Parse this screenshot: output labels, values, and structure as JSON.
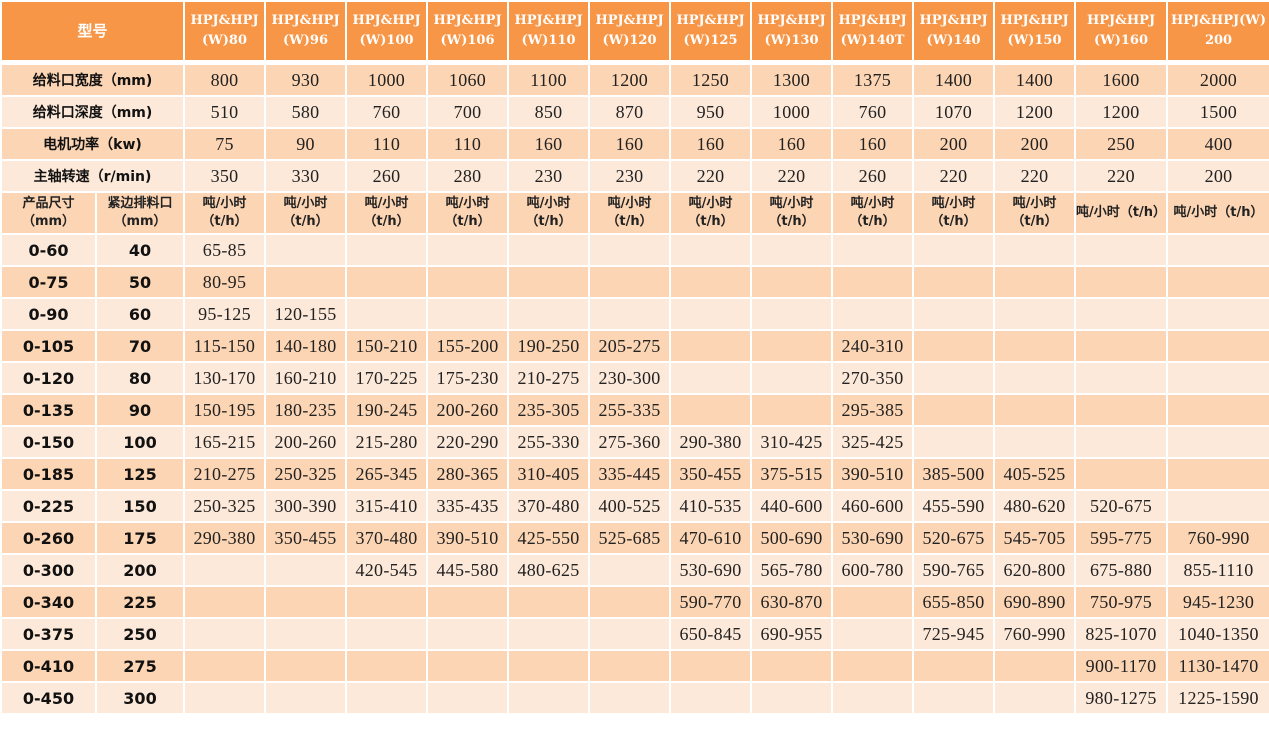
{
  "colors": {
    "header": "#F79646",
    "row_dark": "#FCD5B4",
    "row_light": "#FDE9D9"
  },
  "header": {
    "model_label": "型号",
    "models": [
      "HPJ&HPJ(W)80",
      "HPJ&HPJ(W)96",
      "HPJ&HPJ(W)100",
      "HPJ&HPJ(W)106",
      "HPJ&HPJ(W)110",
      "HPJ&HPJ(W)120",
      "HPJ&HPJ(W)125",
      "HPJ&HPJ(W)130",
      "HPJ&HPJ(W)140T",
      "HPJ&HPJ(W)140",
      "HPJ&HPJ(W)150",
      "HPJ&HPJ(W)160",
      "HPJ&HPJ(W)200"
    ]
  },
  "specs": [
    {
      "label": "给料口宽度（mm)",
      "values": [
        "800",
        "930",
        "1000",
        "1060",
        "1100",
        "1200",
        "1250",
        "1300",
        "1375",
        "1400",
        "1400",
        "1600",
        "2000"
      ]
    },
    {
      "label": "给料口深度（mm)",
      "values": [
        "510",
        "580",
        "760",
        "700",
        "850",
        "870",
        "950",
        "1000",
        "760",
        "1070",
        "1200",
        "1200",
        "1500"
      ]
    },
    {
      "label": "电机功率（kw)",
      "values": [
        "75",
        "90",
        "110",
        "110",
        "160",
        "160",
        "160",
        "160",
        "160",
        "200",
        "200",
        "250",
        "400"
      ]
    },
    {
      "label": "主轴转速（r/min)",
      "values": [
        "350",
        "330",
        "260",
        "280",
        "230",
        "230",
        "220",
        "220",
        "260",
        "220",
        "220",
        "220",
        "200"
      ]
    }
  ],
  "units": {
    "size": "产品尺寸（mm）",
    "gap": "紧边排料口（mm）",
    "capacity": "吨/小时（t/h）"
  },
  "rows": [
    {
      "size": "0-60",
      "gap": "40",
      "values": [
        "65-85",
        "",
        "",
        "",
        "",
        "",
        "",
        "",
        "",
        "",
        "",
        "",
        ""
      ]
    },
    {
      "size": "0-75",
      "gap": "50",
      "values": [
        "80-95",
        "",
        "",
        "",
        "",
        "",
        "",
        "",
        "",
        "",
        "",
        "",
        ""
      ]
    },
    {
      "size": "0-90",
      "gap": "60",
      "values": [
        "95-125",
        "120-155",
        "",
        "",
        "",
        "",
        "",
        "",
        "",
        "",
        "",
        "",
        ""
      ]
    },
    {
      "size": "0-105",
      "gap": "70",
      "values": [
        "115-150",
        "140-180",
        "150-210",
        "155-200",
        "190-250",
        "205-275",
        "",
        "",
        "240-310",
        "",
        "",
        "",
        ""
      ]
    },
    {
      "size": "0-120",
      "gap": "80",
      "values": [
        "130-170",
        "160-210",
        "170-225",
        "175-230",
        "210-275",
        "230-300",
        "",
        "",
        "270-350",
        "",
        "",
        "",
        ""
      ]
    },
    {
      "size": "0-135",
      "gap": "90",
      "values": [
        "150-195",
        "180-235",
        "190-245",
        "200-260",
        "235-305",
        "255-335",
        "",
        "",
        "295-385",
        "",
        "",
        "",
        ""
      ]
    },
    {
      "size": "0-150",
      "gap": "100",
      "values": [
        "165-215",
        "200-260",
        "215-280",
        "220-290",
        "255-330",
        "275-360",
        "290-380",
        "310-425",
        "325-425",
        "",
        "",
        "",
        ""
      ]
    },
    {
      "size": "0-185",
      "gap": "125",
      "values": [
        "210-275",
        "250-325",
        "265-345",
        "280-365",
        "310-405",
        "335-445",
        "350-455",
        "375-515",
        "390-510",
        "385-500",
        "405-525",
        "",
        ""
      ]
    },
    {
      "size": "0-225",
      "gap": "150",
      "values": [
        "250-325",
        "300-390",
        "315-410",
        "335-435",
        "370-480",
        "400-525",
        "410-535",
        "440-600",
        "460-600",
        "455-590",
        "480-620",
        "520-675",
        ""
      ]
    },
    {
      "size": "0-260",
      "gap": "175",
      "values": [
        "290-380",
        "350-455",
        "370-480",
        "390-510",
        "425-550",
        "525-685",
        "470-610",
        "500-690",
        "530-690",
        "520-675",
        "545-705",
        "595-775",
        "760-990"
      ]
    },
    {
      "size": "0-300",
      "gap": "200",
      "values": [
        "",
        "",
        "420-545",
        "445-580",
        "480-625",
        "",
        "530-690",
        "565-780",
        "600-780",
        "590-765",
        "620-800",
        "675-880",
        "855-1110"
      ]
    },
    {
      "size": "0-340",
      "gap": "225",
      "values": [
        "",
        "",
        "",
        "",
        "",
        "",
        "590-770",
        "630-870",
        "",
        "655-850",
        "690-890",
        "750-975",
        "945-1230"
      ]
    },
    {
      "size": "0-375",
      "gap": "250",
      "values": [
        "",
        "",
        "",
        "",
        "",
        "",
        "650-845",
        "690-955",
        "",
        "725-945",
        "760-990",
        "825-1070",
        "1040-1350"
      ]
    },
    {
      "size": "0-410",
      "gap": "275",
      "values": [
        "",
        "",
        "",
        "",
        "",
        "",
        "",
        "",
        "",
        "",
        "",
        "900-1170",
        "1130-1470"
      ]
    },
    {
      "size": "0-450",
      "gap": "300",
      "values": [
        "",
        "",
        "",
        "",
        "",
        "",
        "",
        "",
        "",
        "",
        "",
        "980-1275",
        "1225-1590"
      ]
    }
  ]
}
